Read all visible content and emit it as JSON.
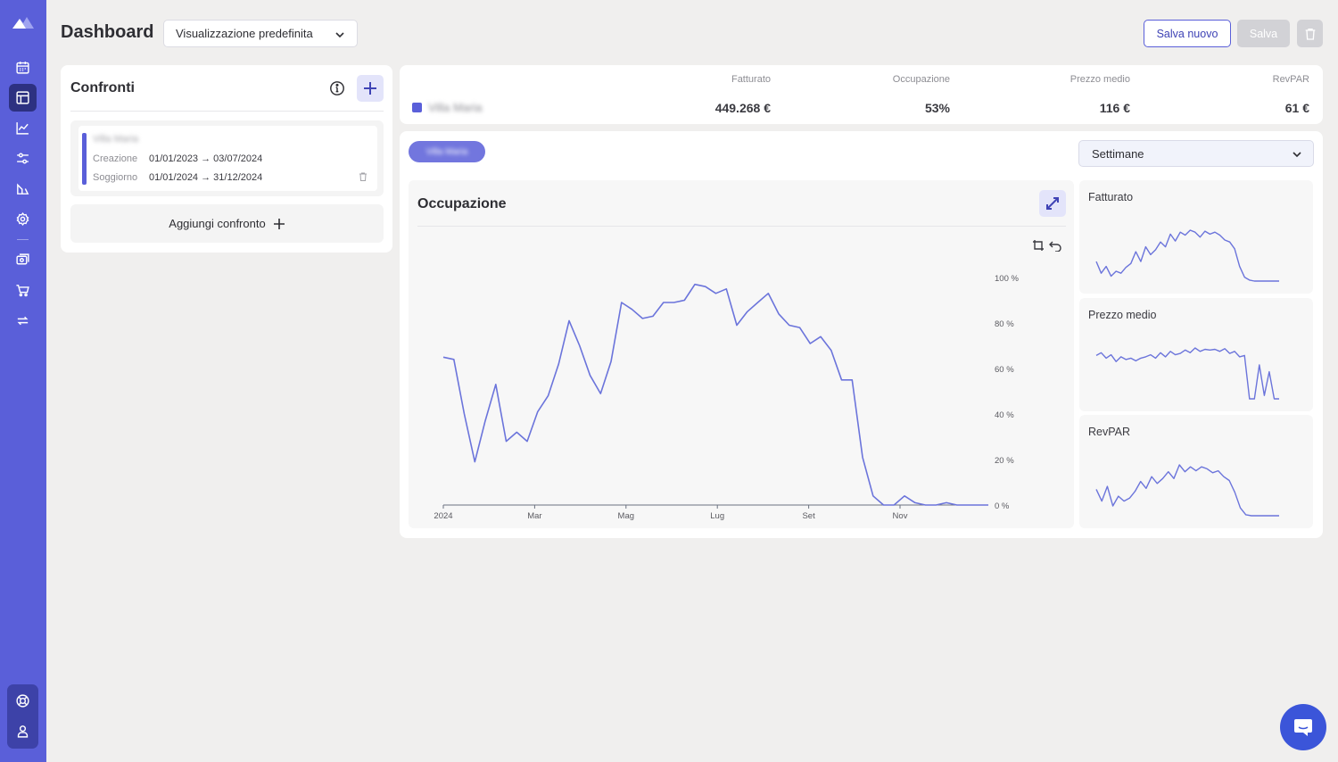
{
  "header": {
    "title": "Dashboard",
    "view_select": "Visualizzazione predefinita",
    "save_new_label": "Salva nuovo",
    "save_label": "Salva"
  },
  "sidebar": {
    "items": [
      "calendar-icon",
      "layout-icon",
      "chart-line-icon",
      "sliders-icon",
      "shapes-icon",
      "settings-icon",
      "channels-icon",
      "cart-icon",
      "sync-icon"
    ],
    "bottom_items": [
      "help-icon",
      "user-icon"
    ],
    "accent": "#5a5fd9",
    "active_bg": "#2d3181"
  },
  "comparisons": {
    "title": "Confronti",
    "card": {
      "property_name": "Villa Maria",
      "creation_label": "Creazione",
      "creation_dates": "01/01/2023 → 03/07/2024",
      "stay_label": "Soggiorno",
      "stay_dates": "01/01/2024 → 31/12/2024"
    },
    "add_label": "Aggiungi confronto"
  },
  "kpis": {
    "property_name": "Villa Maria",
    "headers": [
      "Fatturato",
      "Occupazione",
      "Prezzo medio",
      "RevPAR"
    ],
    "values": [
      "449.268 €",
      "53%",
      "116 €",
      "61 €"
    ]
  },
  "main": {
    "chip_label": "Villa Maria",
    "period_select": "Settimane",
    "big_chart_title": "Occupazione",
    "mini_titles": [
      "Fatturato",
      "Prezzo medio",
      "RevPAR"
    ]
  },
  "chart_data": [
    {
      "type": "line",
      "title": "Occupazione",
      "x_tick_labels": [
        "2024",
        "Mar",
        "Mag",
        "Lug",
        "Set",
        "Nov"
      ],
      "y_tick_labels": [
        "0 %",
        "20 %",
        "40 %",
        "60 %",
        "80 %",
        "100 %"
      ],
      "ylim": [
        0,
        100
      ],
      "series": [
        {
          "values": [
            65,
            64,
            40,
            19,
            37,
            53,
            28,
            32,
            28,
            41,
            48,
            62,
            81,
            70,
            57,
            49,
            63,
            89,
            86,
            82,
            83,
            89,
            89,
            90,
            97,
            96,
            93,
            95,
            79,
            85,
            89,
            93,
            84,
            79,
            78,
            71,
            74,
            68,
            55,
            55,
            21,
            4,
            0,
            0,
            4,
            1,
            0,
            0,
            1,
            0,
            0,
            0,
            0
          ],
          "color": "#6b74db"
        }
      ]
    },
    {
      "type": "line",
      "title": "Fatturato",
      "series": [
        {
          "values": [
            20,
            8,
            15,
            5,
            10,
            8,
            14,
            18,
            30,
            20,
            35,
            27,
            32,
            40,
            35,
            48,
            41,
            50,
            47,
            52,
            50,
            45,
            51,
            48,
            50,
            47,
            42,
            40,
            33,
            15,
            4,
            1,
            0,
            0,
            0,
            0,
            0,
            0
          ]
        }
      ]
    },
    {
      "type": "line",
      "title": "Prezzo medio",
      "series": [
        {
          "values": [
            64,
            68,
            60,
            65,
            55,
            62,
            58,
            60,
            56,
            60,
            62,
            65,
            60,
            68,
            62,
            70,
            65,
            67,
            72,
            68,
            75,
            70,
            73,
            72,
            73,
            70,
            74,
            67,
            70,
            62,
            64,
            0,
            0,
            50,
            5,
            40,
            0,
            0
          ]
        }
      ]
    },
    {
      "type": "line",
      "title": "RevPAR",
      "series": [
        {
          "values": [
            27,
            15,
            30,
            10,
            20,
            15,
            18,
            25,
            35,
            28,
            40,
            33,
            38,
            45,
            38,
            52,
            45,
            50,
            46,
            50,
            48,
            44,
            46,
            40,
            36,
            24,
            8,
            1,
            0,
            0,
            0,
            0,
            0,
            0
          ]
        }
      ]
    }
  ]
}
